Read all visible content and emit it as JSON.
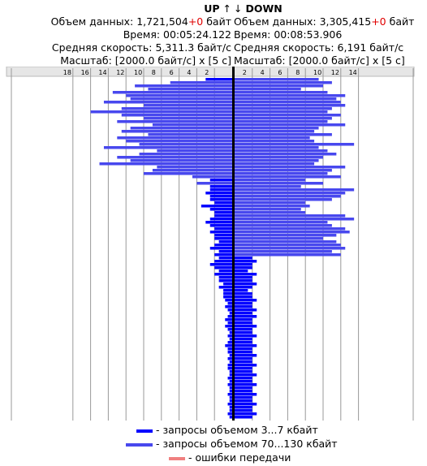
{
  "up": {
    "title": "UP",
    "arrow": "↑",
    "volume_label": "Объем данных: ",
    "volume_value": "1,721,504",
    "volume_errors": "+0",
    "volume_unit": " байт",
    "time": "Время: 00:05:24.122",
    "speed": "Средняя скорость: 5,311.3 байт/с",
    "scale": "Масштаб: [2000.0 байт/с] x [5 с]"
  },
  "down": {
    "title": "DOWN",
    "arrow": "↓",
    "volume_label": "Объем данных: ",
    "volume_value": "3,305,415",
    "volume_errors": "+0",
    "volume_unit": " байт",
    "time": "Время: 00:08:53.906",
    "speed": "Средняя скорость: 6,191 байт/с",
    "scale": "Масштаб: [2000.0 байт/с] x [5 с]"
  },
  "legend": {
    "small": "- запросы объемом 3...7 кбайт",
    "large": "- запросы объемом 70...130 кбайт",
    "errors": "- ошибки передачи"
  },
  "colors": {
    "small": "#0000ff",
    "large": "#4848ee",
    "errors": "#f08080",
    "grid": "#999999",
    "axis": "#000000",
    "errors_text": "#e00000"
  },
  "chart_data": {
    "type": "bar",
    "orientation": "horizontal, mirrored (UP to the left, DOWN to the right)",
    "x_unit": "x 2000 байт/с",
    "up_ticks": [
      "18",
      "16",
      "14",
      "12",
      "10",
      "8",
      "6",
      "4",
      "2"
    ],
    "down_ticks": [
      "2",
      "4",
      "6",
      "8",
      "10",
      "12",
      "14"
    ],
    "up_xlim": [
      0,
      19
    ],
    "down_xlim": [
      0,
      14.5
    ],
    "up": [
      3.0,
      7.0,
      11.0,
      9.5,
      13.5,
      12.0,
      11.5,
      14.5,
      10.0,
      12.5,
      16.0,
      12.5,
      10.0,
      13.0,
      9.0,
      11.5,
      12.5,
      9.5,
      13.0,
      12.0,
      10.5,
      14.5,
      8.5,
      10.5,
      13.0,
      11.5,
      15.0,
      8.5,
      9.0,
      10.0,
      4.5,
      2.5,
      4.0,
      2.5,
      2.5,
      3.0,
      2.5,
      2.5,
      2.0,
      3.5,
      2.5,
      2.0,
      2.0,
      2.5,
      3.0,
      2.5,
      2.0,
      2.5,
      2.0,
      2.0,
      1.5,
      2.0,
      2.5,
      1.5,
      2.0,
      1.5,
      2.0,
      2.5,
      2.0,
      1.5,
      2.0,
      1.5,
      1.5,
      1.0,
      1.5,
      1.0,
      1.0,
      1.0,
      0.8,
      0.5,
      0.8,
      0.5,
      0.3,
      0.5,
      0.8,
      0.5,
      0.8,
      0.5,
      0.3,
      0.5,
      0.3,
      0.5,
      0.8,
      0.5,
      0.5,
      0.3,
      0.5,
      0.3,
      0.5,
      0.5,
      0.3,
      0.3,
      0.5,
      0.3,
      0.5,
      0.3,
      0.3,
      0.5,
      0.3,
      0.3,
      0.5,
      0.3,
      0.3,
      0.5,
      0.3
    ],
    "down": [
      9.5,
      11.0,
      10.0,
      7.5,
      10.5,
      12.5,
      11.5,
      12.0,
      12.5,
      11.0,
      10.5,
      12.0,
      11.0,
      10.5,
      12.5,
      9.5,
      9.0,
      11.0,
      8.5,
      9.0,
      13.5,
      9.5,
      10.5,
      11.5,
      10.0,
      9.5,
      9.0,
      12.5,
      11.0,
      10.5,
      12.0,
      8.0,
      10.0,
      7.5,
      13.5,
      12.5,
      12.0,
      11.0,
      8.0,
      8.5,
      7.5,
      8.0,
      12.5,
      13.5,
      10.5,
      11.0,
      12.5,
      13.0,
      11.5,
      10.0,
      11.5,
      12.0,
      12.5,
      11.0,
      12.0,
      2.0,
      2.5,
      2.0,
      2.0,
      1.5,
      2.5,
      2.0,
      2.0,
      2.5,
      2.0,
      1.5,
      2.0,
      2.0,
      2.5,
      2.0,
      2.0,
      2.5,
      2.0,
      2.5,
      2.0,
      2.0,
      2.5,
      2.0,
      2.0,
      2.5,
      2.0,
      2.0,
      2.5,
      2.0,
      2.0,
      2.5,
      2.0,
      2.0,
      2.5,
      2.0,
      2.0,
      2.5,
      2.0,
      2.0,
      2.5,
      2.0,
      2.0,
      2.5,
      2.0,
      2.0,
      2.5,
      2.0,
      2.0,
      2.5,
      2.0
    ]
  }
}
